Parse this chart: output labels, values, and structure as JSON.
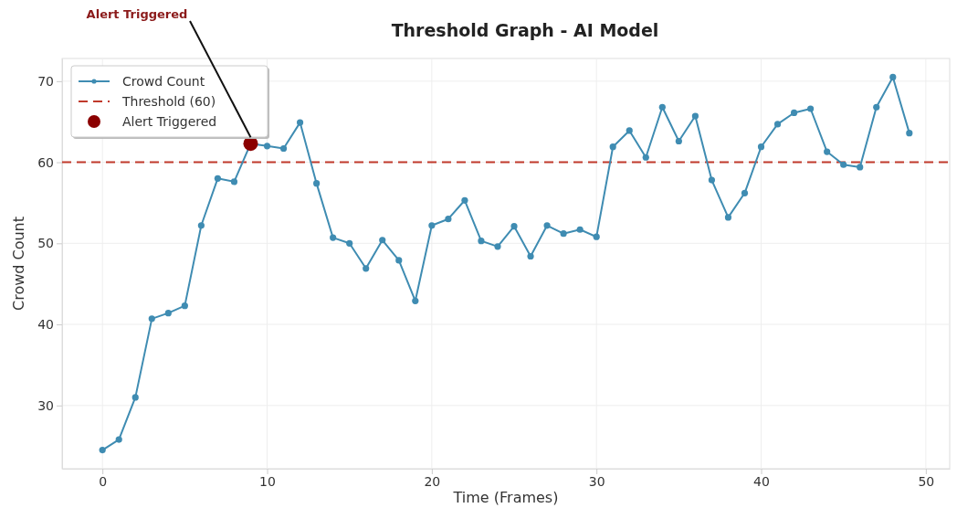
{
  "chart_data": {
    "type": "line",
    "title": "Threshold Graph - AI Model",
    "xlabel": "Time (Frames)",
    "ylabel": "Crowd Count",
    "x": [
      0,
      1,
      2,
      3,
      4,
      5,
      6,
      7,
      8,
      9,
      10,
      11,
      12,
      13,
      14,
      15,
      16,
      17,
      18,
      19,
      20,
      21,
      22,
      23,
      24,
      25,
      26,
      27,
      28,
      29,
      30,
      31,
      32,
      33,
      34,
      35,
      36,
      37,
      38,
      39,
      40,
      41,
      42,
      43,
      44,
      45,
      46,
      47,
      48,
      49
    ],
    "series": [
      {
        "name": "Crowd Count",
        "color": "#3f8cb2",
        "values": [
          24.5,
          25.8,
          31,
          40.7,
          41.4,
          42.3,
          52.2,
          58,
          57.6,
          62.3,
          62,
          61.7,
          64.9,
          57.4,
          50.7,
          50,
          46.9,
          50.4,
          47.9,
          42.9,
          52.2,
          53,
          55.3,
          50.3,
          49.6,
          52.1,
          48.4,
          52.2,
          51.2,
          51.7,
          50.8,
          61.9,
          63.9,
          60.6,
          66.8,
          62.6,
          65.7,
          57.8,
          53.2,
          56.2,
          61.9,
          64.7,
          66.1,
          66.6,
          61.3,
          59.7,
          59.4,
          66.8,
          70.5,
          63.6
        ]
      },
      {
        "name": "Alert Triggered",
        "type": "scatter",
        "color": "#8b0000",
        "x": [
          9
        ],
        "values": [
          62.3
        ]
      }
    ],
    "ref_lines": [
      {
        "axis": "y",
        "value": 60,
        "label": "Threshold (60)",
        "color": "#c0392b",
        "line_style": "dashed"
      }
    ],
    "annotations": [
      {
        "text": "Alert Triggered",
        "x": 9,
        "y": 62.3
      }
    ],
    "xlim": [
      -2.45,
      51.45
    ],
    "xticks": [
      0,
      10,
      20,
      30,
      40,
      50
    ],
    "ylim": [
      22.2,
      72.8
    ],
    "yticks": [
      30,
      40,
      50,
      60,
      70
    ],
    "grid": true,
    "legend": "top left",
    "marker": "circle"
  }
}
